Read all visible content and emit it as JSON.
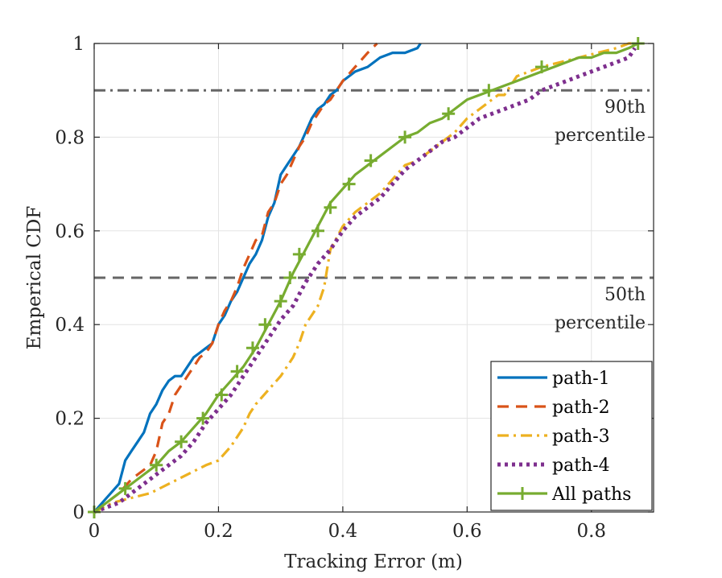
{
  "chart_data": {
    "type": "line",
    "title": "",
    "xlabel": "Tracking Error (m)",
    "ylabel": "Emperical CDF",
    "xlim": [
      0,
      0.9
    ],
    "ylim": [
      0,
      1
    ],
    "xticks": [
      0,
      0.2,
      0.4,
      0.6,
      0.8
    ],
    "xtick_labels": [
      "0",
      "0.2",
      "0.4",
      "0.6",
      "0.8"
    ],
    "yticks": [
      0,
      0.2,
      0.4,
      0.6,
      0.8,
      1
    ],
    "ytick_labels": [
      "0",
      "0.2",
      "0.4",
      "0.6",
      "0.8",
      "1"
    ],
    "grid": true,
    "legend_position": "bottom-right",
    "reference_lines": [
      {
        "y": 0.9,
        "style": "dash-dot",
        "color": "#666666",
        "label_lines": [
          "90th",
          "percentile"
        ]
      },
      {
        "y": 0.5,
        "style": "dashed",
        "color": "#666666",
        "label_lines": [
          "50th",
          "percentile"
        ]
      }
    ],
    "series": [
      {
        "name": "path-1",
        "color": "#0072BD",
        "style": "solid",
        "marker": "none",
        "x": [
          0,
          0.02,
          0.04,
          0.05,
          0.06,
          0.07,
          0.08,
          0.09,
          0.1,
          0.11,
          0.12,
          0.13,
          0.14,
          0.15,
          0.16,
          0.17,
          0.18,
          0.19,
          0.2,
          0.21,
          0.22,
          0.23,
          0.24,
          0.25,
          0.26,
          0.27,
          0.28,
          0.29,
          0.3,
          0.31,
          0.32,
          0.33,
          0.34,
          0.35,
          0.36,
          0.37,
          0.38,
          0.39,
          0.4,
          0.42,
          0.44,
          0.46,
          0.48,
          0.5,
          0.52,
          0.525
        ],
        "y": [
          0,
          0.03,
          0.06,
          0.11,
          0.13,
          0.15,
          0.17,
          0.21,
          0.23,
          0.26,
          0.28,
          0.29,
          0.29,
          0.31,
          0.33,
          0.34,
          0.35,
          0.36,
          0.4,
          0.42,
          0.45,
          0.47,
          0.5,
          0.53,
          0.55,
          0.58,
          0.63,
          0.66,
          0.72,
          0.74,
          0.76,
          0.78,
          0.81,
          0.84,
          0.86,
          0.87,
          0.89,
          0.9,
          0.92,
          0.94,
          0.95,
          0.97,
          0.98,
          0.98,
          0.99,
          1.0
        ]
      },
      {
        "name": "path-2",
        "color": "#D95319",
        "style": "dashed",
        "marker": "none",
        "x": [
          0,
          0.02,
          0.04,
          0.06,
          0.07,
          0.08,
          0.09,
          0.1,
          0.11,
          0.12,
          0.13,
          0.14,
          0.15,
          0.16,
          0.17,
          0.18,
          0.19,
          0.2,
          0.21,
          0.22,
          0.23,
          0.24,
          0.25,
          0.26,
          0.27,
          0.28,
          0.29,
          0.3,
          0.31,
          0.32,
          0.33,
          0.34,
          0.35,
          0.36,
          0.37,
          0.38,
          0.39,
          0.4,
          0.42,
          0.44,
          0.455
        ],
        "y": [
          0,
          0.02,
          0.04,
          0.07,
          0.08,
          0.09,
          0.1,
          0.13,
          0.19,
          0.21,
          0.25,
          0.27,
          0.29,
          0.31,
          0.33,
          0.34,
          0.36,
          0.4,
          0.43,
          0.45,
          0.48,
          0.52,
          0.55,
          0.58,
          0.59,
          0.64,
          0.66,
          0.7,
          0.72,
          0.75,
          0.78,
          0.8,
          0.83,
          0.85,
          0.87,
          0.88,
          0.9,
          0.92,
          0.95,
          0.98,
          1.0
        ]
      },
      {
        "name": "path-3",
        "color": "#EDB120",
        "style": "dash-dot",
        "marker": "none",
        "x": [
          0,
          0.03,
          0.06,
          0.09,
          0.12,
          0.15,
          0.18,
          0.2,
          0.22,
          0.24,
          0.25,
          0.26,
          0.28,
          0.3,
          0.31,
          0.32,
          0.33,
          0.34,
          0.35,
          0.36,
          0.37,
          0.38,
          0.4,
          0.42,
          0.44,
          0.46,
          0.48,
          0.5,
          0.52,
          0.54,
          0.56,
          0.58,
          0.6,
          0.62,
          0.63,
          0.64,
          0.65,
          0.66,
          0.67,
          0.68,
          0.7,
          0.72,
          0.75,
          0.78,
          0.81,
          0.84,
          0.86,
          0.87
        ],
        "y": [
          0,
          0.02,
          0.03,
          0.04,
          0.06,
          0.08,
          0.1,
          0.11,
          0.14,
          0.18,
          0.21,
          0.23,
          0.26,
          0.29,
          0.31,
          0.33,
          0.36,
          0.4,
          0.42,
          0.44,
          0.48,
          0.56,
          0.61,
          0.64,
          0.66,
          0.68,
          0.71,
          0.74,
          0.75,
          0.77,
          0.79,
          0.81,
          0.84,
          0.86,
          0.87,
          0.88,
          0.89,
          0.89,
          0.91,
          0.93,
          0.94,
          0.95,
          0.96,
          0.97,
          0.98,
          0.99,
          1.0,
          1.0
        ]
      },
      {
        "name": "path-4",
        "color": "#7E2F8E",
        "style": "dotted",
        "marker": "none",
        "x": [
          0,
          0.02,
          0.04,
          0.06,
          0.08,
          0.1,
          0.12,
          0.14,
          0.16,
          0.18,
          0.2,
          0.22,
          0.24,
          0.26,
          0.28,
          0.3,
          0.32,
          0.34,
          0.36,
          0.38,
          0.4,
          0.42,
          0.44,
          0.46,
          0.48,
          0.5,
          0.52,
          0.54,
          0.56,
          0.58,
          0.6,
          0.62,
          0.64,
          0.66,
          0.68,
          0.7,
          0.72,
          0.74,
          0.76,
          0.78,
          0.8,
          0.82,
          0.84,
          0.86,
          0.87
        ],
        "y": [
          0,
          0.01,
          0.02,
          0.04,
          0.06,
          0.08,
          0.1,
          0.12,
          0.15,
          0.19,
          0.22,
          0.25,
          0.29,
          0.33,
          0.37,
          0.41,
          0.44,
          0.49,
          0.53,
          0.56,
          0.6,
          0.63,
          0.65,
          0.67,
          0.7,
          0.73,
          0.75,
          0.77,
          0.79,
          0.8,
          0.82,
          0.84,
          0.85,
          0.86,
          0.87,
          0.88,
          0.9,
          0.91,
          0.92,
          0.93,
          0.94,
          0.95,
          0.96,
          0.97,
          0.99
        ]
      },
      {
        "name": "All paths",
        "color": "#77AC30",
        "style": "solid",
        "marker": "plus",
        "x": [
          0,
          0.02,
          0.04,
          0.06,
          0.08,
          0.1,
          0.12,
          0.14,
          0.16,
          0.18,
          0.2,
          0.22,
          0.24,
          0.26,
          0.28,
          0.3,
          0.32,
          0.34,
          0.36,
          0.38,
          0.4,
          0.42,
          0.44,
          0.46,
          0.48,
          0.5,
          0.52,
          0.54,
          0.56,
          0.58,
          0.6,
          0.62,
          0.64,
          0.66,
          0.68,
          0.7,
          0.72,
          0.74,
          0.76,
          0.78,
          0.8,
          0.82,
          0.84,
          0.86,
          0.875
        ],
        "y": [
          0,
          0.02,
          0.04,
          0.06,
          0.08,
          0.1,
          0.13,
          0.15,
          0.18,
          0.21,
          0.25,
          0.28,
          0.31,
          0.35,
          0.4,
          0.45,
          0.51,
          0.56,
          0.61,
          0.66,
          0.69,
          0.72,
          0.74,
          0.76,
          0.78,
          0.8,
          0.81,
          0.83,
          0.84,
          0.86,
          0.88,
          0.89,
          0.9,
          0.91,
          0.92,
          0.93,
          0.94,
          0.95,
          0.96,
          0.97,
          0.97,
          0.98,
          0.98,
          0.99,
          1.0
        ],
        "markers_x": [
          0,
          0.05,
          0.1,
          0.14,
          0.175,
          0.205,
          0.23,
          0.255,
          0.275,
          0.3,
          0.315,
          0.33,
          0.36,
          0.38,
          0.41,
          0.445,
          0.5,
          0.57,
          0.635,
          0.72,
          0.875
        ],
        "markers_y": [
          0,
          0.05,
          0.1,
          0.15,
          0.2,
          0.25,
          0.3,
          0.35,
          0.4,
          0.45,
          0.5,
          0.55,
          0.6,
          0.65,
          0.7,
          0.75,
          0.8,
          0.85,
          0.9,
          0.95,
          1.0
        ]
      }
    ]
  }
}
